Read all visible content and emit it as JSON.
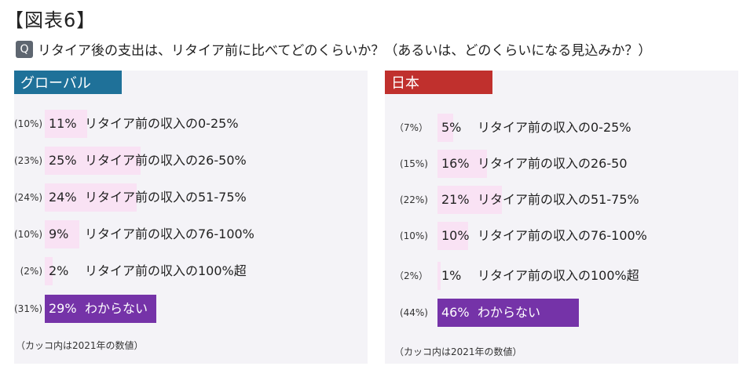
{
  "figure_title": "【図表6】",
  "question": {
    "icon": "Q",
    "text": "リタイア後の支出は、リタイア前に比べてどのくらいか？（あるいは、どのくらいになる見込みか？）"
  },
  "chart_data": [
    {
      "type": "bar",
      "title": "グローバル",
      "header_color": "#1f7199",
      "categories": [
        "リタイア前の収入の0-25%",
        "リタイア前の収入の26-50%",
        "リタイア前の収入の51-75%",
        "リタイア前の収入の76-100%",
        "リタイア前の収入の100%超",
        "わからない"
      ],
      "series": [
        {
          "values": [
            11,
            25,
            24,
            9,
            2,
            29
          ]
        },
        {
          "values": [
            10,
            23,
            24,
            10,
            2,
            31
          ]
        }
      ],
      "value_labels": [
        "11%",
        "25%",
        "24%",
        "9%",
        "2%",
        "29%"
      ],
      "previous_labels": [
        "(10%)",
        "(23%)",
        "(24%)",
        "(10%)",
        "(2%)",
        "(31%)"
      ],
      "highlight_index": 5,
      "footnote": "（カッコ内は2021年の数値）",
      "colors": {
        "bar": "#f9e2f4",
        "highlight": "#7533a8"
      }
    },
    {
      "type": "bar",
      "title": "日本",
      "header_color": "#c0302d",
      "categories": [
        "リタイア前の収入の0-25%",
        "リタイア前の収入の26-50",
        "リタイア前の収入の51-75%",
        "リタイア前の収入の76-100%",
        "リタイア前の収入の100%超",
        "わからない"
      ],
      "series": [
        {
          "values": [
            5,
            16,
            21,
            10,
            1,
            46
          ]
        },
        {
          "values": [
            7,
            15,
            22,
            10,
            2,
            44
          ]
        }
      ],
      "value_labels": [
        "5%",
        "16%",
        "21%",
        "10%",
        "1%",
        "46%"
      ],
      "previous_labels": [
        "（7%）",
        "(15%)",
        "(22%)",
        "(10%)",
        "（2%）",
        "(44%)"
      ],
      "highlight_index": 5,
      "footnote": "（カッコ内は2021年の数値）",
      "colors": {
        "bar": "#f9e2f4",
        "highlight": "#7533a8"
      }
    }
  ]
}
